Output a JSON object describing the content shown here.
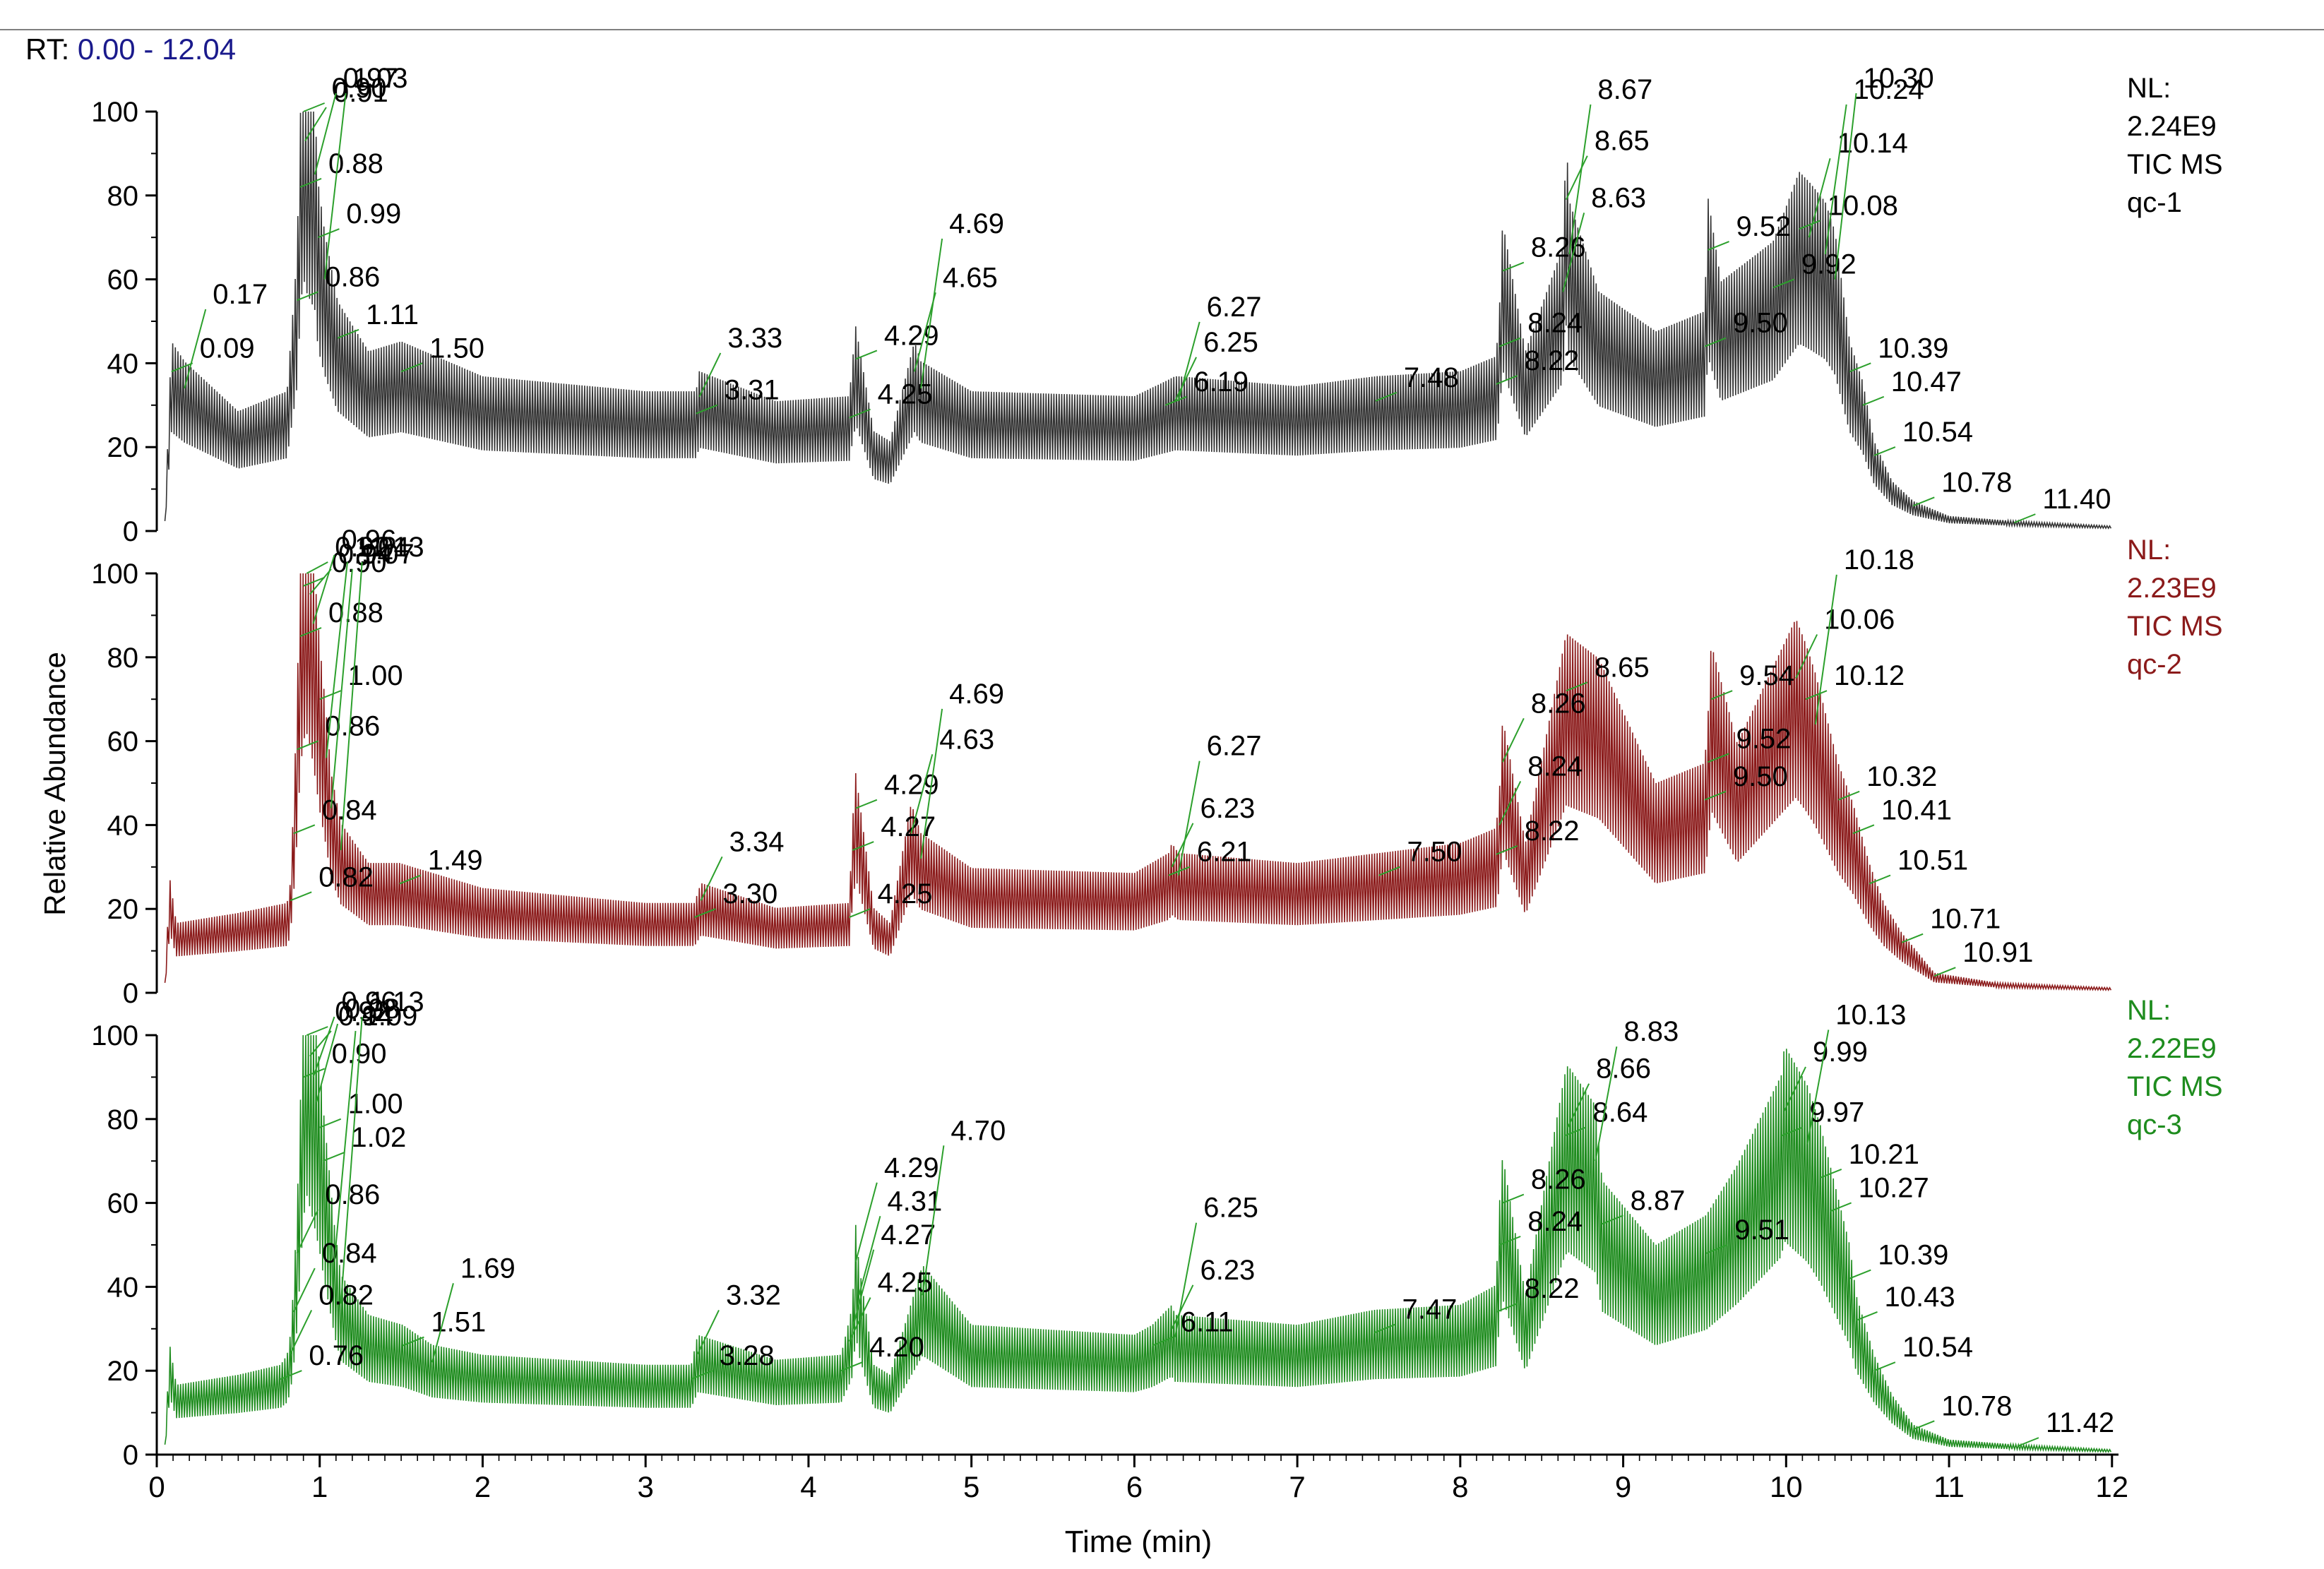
{
  "header": {
    "rt_label": "RT:",
    "rt_range": "0.00 - 12.04"
  },
  "chart_data": {
    "type": "line",
    "title": "",
    "xlabel": "Time (min)",
    "ylabel": "Relative Abundance",
    "xlim": [
      0,
      12.04
    ],
    "ylim": [
      0,
      100
    ],
    "x_ticks": [
      0,
      1,
      2,
      3,
      4,
      5,
      6,
      7,
      8,
      9,
      10,
      11,
      12
    ],
    "y_ticks": [
      0,
      20,
      40,
      60,
      80,
      100
    ],
    "series": [
      {
        "name": "qc-1",
        "color": "#333333",
        "nl_label": "NL:",
        "nl_value": "2.24E9",
        "scan_label": "TIC  MS",
        "sample": "qc-1",
        "x": [
          0.05,
          0.09,
          0.17,
          0.5,
          0.8,
          0.86,
          0.88,
          0.9,
          0.91,
          0.97,
          0.99,
          1.03,
          1.11,
          1.3,
          1.5,
          2.0,
          3.0,
          3.31,
          3.33,
          3.8,
          4.25,
          4.29,
          4.4,
          4.5,
          4.65,
          4.69,
          5.0,
          6.0,
          6.19,
          6.25,
          6.27,
          7.0,
          7.48,
          8.0,
          8.22,
          8.24,
          8.26,
          8.4,
          8.63,
          8.65,
          8.67,
          8.85,
          9.2,
          9.5,
          9.52,
          9.6,
          9.92,
          10.08,
          10.14,
          10.24,
          10.3,
          10.39,
          10.47,
          10.54,
          10.65,
          10.78,
          11.0,
          11.4,
          12.0
        ],
        "values": [
          2,
          38,
          34,
          24,
          28,
          55,
          82,
          100,
          93,
          85,
          70,
          60,
          46,
          36,
          38,
          31,
          28,
          28,
          32,
          26,
          27,
          41,
          20,
          18,
          38,
          34,
          28,
          27,
          30,
          31,
          31,
          29,
          31,
          32,
          35,
          44,
          62,
          36,
          57,
          79,
          66,
          48,
          40,
          44,
          67,
          50,
          58,
          72,
          70,
          66,
          60,
          38,
          30,
          18,
          10,
          6,
          3,
          2,
          1
        ],
        "peak_labels": [
          "0.09",
          "0.17",
          "0.86",
          "0.88",
          "0.90",
          "0.91",
          "0.97",
          "0.99",
          "1.03",
          "1.11",
          "1.50",
          "3.31",
          "3.33",
          "4.25",
          "4.29",
          "4.65",
          "4.69",
          "6.19",
          "6.25",
          "6.27",
          "7.48",
          "8.22",
          "8.24",
          "8.26",
          "8.63",
          "8.65",
          "8.67",
          "9.50",
          "9.52",
          "9.92",
          "10.08",
          "10.14",
          "10.24",
          "10.30",
          "10.39",
          "10.47",
          "10.54",
          "10.78",
          "11.40"
        ]
      },
      {
        "name": "qc-2",
        "color": "#8b1a1a",
        "nl_label": "NL:",
        "nl_value": "2.23E9",
        "scan_label": "TIC  MS",
        "sample": "qc-2",
        "x": [
          0.05,
          0.08,
          0.12,
          0.5,
          0.8,
          0.82,
          0.84,
          0.86,
          0.88,
          0.9,
          0.92,
          0.94,
          0.96,
          1.0,
          1.04,
          1.07,
          1.13,
          1.3,
          1.49,
          2.0,
          3.0,
          3.3,
          3.34,
          3.8,
          4.25,
          4.27,
          4.29,
          4.4,
          4.5,
          4.63,
          4.69,
          5.0,
          6.0,
          6.21,
          6.23,
          6.27,
          7.0,
          7.5,
          8.0,
          8.22,
          8.24,
          8.26,
          8.4,
          8.65,
          8.85,
          9.2,
          9.5,
          9.52,
          9.54,
          9.7,
          10.06,
          10.12,
          10.18,
          10.32,
          10.41,
          10.51,
          10.6,
          10.71,
          10.91,
          11.3,
          12.0
        ],
        "values": [
          2,
          23,
          14,
          16,
          18,
          22,
          38,
          58,
          85,
          97,
          100,
          95,
          88,
          70,
          56,
          44,
          34,
          26,
          26,
          21,
          18,
          18,
          22,
          17,
          18,
          34,
          44,
          17,
          14,
          38,
          32,
          25,
          24,
          28,
          30,
          28,
          26,
          28,
          30,
          33,
          40,
          55,
          30,
          72,
          67,
          42,
          46,
          55,
          70,
          50,
          75,
          70,
          64,
          46,
          38,
          26,
          18,
          12,
          4,
          2,
          1
        ],
        "peak_labels": [
          "0.82",
          "0.84",
          "0.86",
          "0.88",
          "0.90",
          "0.92",
          "0.94",
          "0.96",
          "1.00",
          "1.04",
          "1.07",
          "1.13",
          "1.49",
          "3.30",
          "3.34",
          "4.25",
          "4.27",
          "4.29",
          "4.63",
          "4.69",
          "6.21",
          "6.23",
          "6.27",
          "7.50",
          "8.22",
          "8.24",
          "8.26",
          "8.65",
          "9.50",
          "9.52",
          "9.54",
          "10.06",
          "10.12",
          "10.18",
          "10.32",
          "10.41",
          "10.51",
          "10.71",
          "10.91"
        ]
      },
      {
        "name": "qc-3",
        "color": "#1e8c1e",
        "nl_label": "NL:",
        "nl_value": "2.22E9",
        "scan_label": "TIC  MS",
        "sample": "qc-3",
        "x": [
          0.05,
          0.08,
          0.12,
          0.5,
          0.76,
          0.8,
          0.82,
          0.84,
          0.86,
          0.9,
          0.92,
          0.94,
          0.96,
          0.98,
          1.0,
          1.02,
          1.09,
          1.13,
          1.3,
          1.51,
          1.69,
          2.0,
          3.0,
          3.28,
          3.32,
          3.8,
          4.2,
          4.25,
          4.27,
          4.29,
          4.31,
          4.4,
          4.5,
          4.7,
          5.0,
          6.0,
          6.11,
          6.23,
          6.25,
          7.0,
          7.47,
          8.0,
          8.22,
          8.24,
          8.26,
          8.4,
          8.64,
          8.66,
          8.83,
          8.87,
          9.2,
          9.51,
          9.7,
          9.97,
          9.99,
          10.13,
          10.21,
          10.27,
          10.39,
          10.43,
          10.54,
          10.65,
          10.78,
          11.0,
          11.42,
          12.0
        ],
        "values": [
          2,
          22,
          14,
          16,
          18,
          20,
          24,
          34,
          48,
          90,
          100,
          95,
          90,
          84,
          78,
          70,
          46,
          36,
          28,
          26,
          22,
          20,
          18,
          18,
          24,
          19,
          20,
          27,
          30,
          46,
          38,
          18,
          16,
          38,
          26,
          24,
          26,
          30,
          28,
          26,
          29,
          30,
          34,
          50,
          60,
          32,
          76,
          78,
          70,
          55,
          42,
          48,
          58,
          76,
          82,
          74,
          66,
          58,
          42,
          32,
          20,
          12,
          6,
          3,
          2,
          1
        ],
        "peak_labels": [
          "0.76",
          "0.82",
          "0.84",
          "0.86",
          "0.90",
          "0.92",
          "0.94",
          "0.96",
          "0.98",
          "1.00",
          "1.02",
          "1.09",
          "1.13",
          "1.51",
          "1.69",
          "3.28",
          "3.32",
          "4.20",
          "4.25",
          "4.27",
          "4.29",
          "4.31",
          "4.70",
          "6.11",
          "6.23",
          "6.25",
          "7.47",
          "8.22",
          "8.24",
          "8.26",
          "8.64",
          "8.66",
          "8.83",
          "8.87",
          "9.51",
          "9.97",
          "9.99",
          "10.13",
          "10.21",
          "10.27",
          "10.39",
          "10.43",
          "10.54",
          "10.78",
          "11.42"
        ]
      }
    ]
  }
}
